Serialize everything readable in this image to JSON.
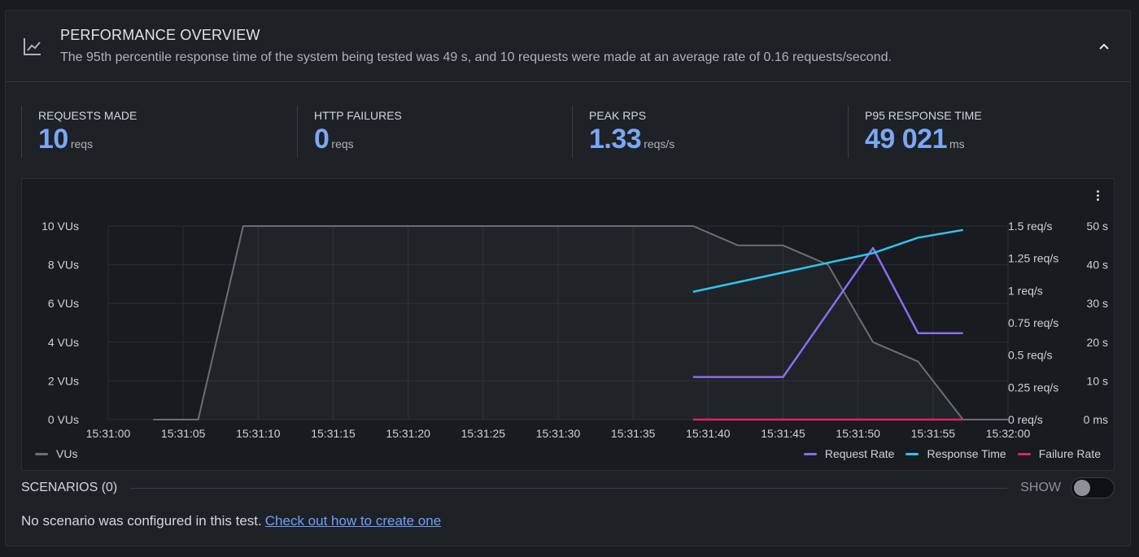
{
  "header": {
    "title": "PERFORMANCE OVERVIEW",
    "subtitle": "The 95th percentile response time of the system being tested was 49 s, and 10 requests were made at an average rate of 0.16 requests/second.",
    "icon": "line-chart-icon",
    "collapse_icon": "chevron-up-icon"
  },
  "stats": [
    {
      "label": "REQUESTS MADE",
      "value": "10",
      "unit": "reqs"
    },
    {
      "label": "HTTP FAILURES",
      "value": "0",
      "unit": "reqs"
    },
    {
      "label": "PEAK RPS",
      "value": "1.33",
      "unit": "reqs/s"
    },
    {
      "label": "P95 RESPONSE TIME",
      "value": "49 021",
      "unit": "ms"
    }
  ],
  "colors": {
    "vus": "#6b6e75",
    "request_rate": "#8a6cf0",
    "response_time": "#2ec5f0",
    "failure_rate": "#e0245e",
    "stat_value": "#7aa8f5"
  },
  "chart_data": {
    "type": "line",
    "x_ticks": [
      "15:31:00",
      "15:31:05",
      "15:31:10",
      "15:31:15",
      "15:31:20",
      "15:31:25",
      "15:31:30",
      "15:31:35",
      "15:31:40",
      "15:31:45",
      "15:31:50",
      "15:31:55",
      "15:32:00"
    ],
    "x_range_seconds": [
      0,
      60
    ],
    "y_axes": {
      "vus": {
        "ticks": [
          "0 VUs",
          "2 VUs",
          "4 VUs",
          "6 VUs",
          "8 VUs",
          "10 VUs"
        ],
        "range": [
          0,
          10
        ]
      },
      "rate": {
        "ticks": [
          "0 req/s",
          "0.25 req/s",
          "0.5 req/s",
          "0.75 req/s",
          "1 req/s",
          "1.25 req/s",
          "1.5 req/s"
        ],
        "range": [
          0,
          1.5
        ]
      },
      "time": {
        "ticks": [
          "0 ms",
          "10 s",
          "20 s",
          "30 s",
          "40 s",
          "50 s"
        ],
        "range": [
          0,
          50
        ]
      }
    },
    "series": [
      {
        "name": "VUs",
        "axis": "vus",
        "points": [
          [
            3,
            0
          ],
          [
            6,
            0
          ],
          [
            9,
            10
          ],
          [
            39,
            10
          ],
          [
            42,
            9
          ],
          [
            45,
            9
          ],
          [
            48,
            8
          ],
          [
            51,
            4
          ],
          [
            54,
            3
          ],
          [
            57,
            0
          ],
          [
            60,
            0
          ]
        ]
      },
      {
        "name": "Request Rate",
        "axis": "rate",
        "points": [
          [
            39,
            0.33
          ],
          [
            45,
            0.33
          ],
          [
            51,
            1.33
          ],
          [
            54,
            0.67
          ],
          [
            57,
            0.67
          ]
        ]
      },
      {
        "name": "Response Time",
        "axis": "time",
        "points": [
          [
            39,
            33
          ],
          [
            45,
            38
          ],
          [
            51,
            43
          ],
          [
            54,
            47
          ],
          [
            57,
            49
          ]
        ]
      },
      {
        "name": "Failure Rate",
        "axis": "rate",
        "points": [
          [
            39,
            0
          ],
          [
            57,
            0
          ]
        ]
      }
    ],
    "legend_left": [
      "VUs"
    ],
    "legend_right": [
      "Request Rate",
      "Response Time",
      "Failure Rate"
    ]
  },
  "scenarios": {
    "title": "SCENARIOS (0)",
    "toggle_label": "SHOW",
    "note": "No scenario was configured in this test.",
    "link": "Check out how to create one"
  }
}
